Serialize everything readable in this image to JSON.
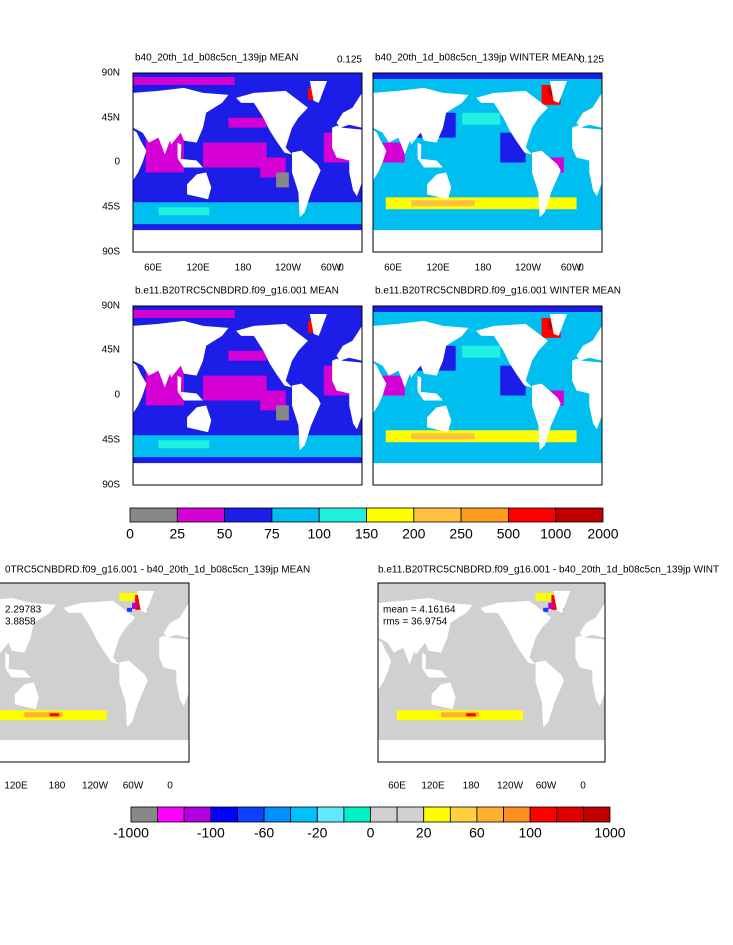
{
  "panels": [
    {
      "title": "b40_20th_1d_b08c5cn_139jp MEAN",
      "corner_label": "0.125",
      "y_labels": [
        "90N",
        "45N",
        "0",
        "45S",
        "90S"
      ],
      "x_labels": [
        "60E",
        "120E",
        "180",
        "120W",
        "60W",
        "0"
      ]
    },
    {
      "title": "b40_20th_1d_b08c5cn_139jp WINTER MEAN",
      "corner_label": "0.125",
      "x_labels": [
        "60E",
        "120E",
        "180",
        "120W",
        "60W",
        "0"
      ]
    },
    {
      "title": "b.e11.B20TRC5CNBDRD.f09_g16.001 MEAN",
      "y_labels": [
        "90N",
        "45N",
        "0",
        "45S",
        "90S"
      ]
    },
    {
      "title": "b.e11.B20TRC5CNBDRD.f09_g16.001 WINTER MEAN"
    },
    {
      "title": "0TRC5CNBDRD.f09_g16.001 - b40_20th_1d_b08c5cn_139jp MEAN",
      "stats": [
        "2.29783",
        "3.8858"
      ],
      "x_labels": [
        "120E",
        "180",
        "120W",
        "60W",
        "0"
      ]
    },
    {
      "title": "b.e11.B20TRC5CNBDRD.f09_g16.001 - b40_20th_1d_b08c5cn_139jp WINT",
      "stats": [
        "mean = 4.16164",
        "rms = 36.9754"
      ],
      "x_labels": [
        "60E",
        "120E",
        "180",
        "120W",
        "60W",
        "0"
      ]
    }
  ],
  "colorbars": [
    {
      "labels": [
        "0",
        "25",
        "50",
        "75",
        "100",
        "150",
        "200",
        "250",
        "500",
        "1000",
        "2000"
      ],
      "colors": [
        "#888888",
        "#d400d4",
        "#1d1de8",
        "#00bff0",
        "#20f0e0",
        "#ffff00",
        "#ffc040",
        "#ff9a20",
        "#ff0000",
        "#c00000"
      ]
    },
    {
      "labels": [
        "-1000",
        "-100",
        "-60",
        "-20",
        "0",
        "20",
        "60",
        "100",
        "1000"
      ],
      "colors": [
        "#888888",
        "#ff00ff",
        "#b000e0",
        "#0000ff",
        "#1040ff",
        "#0090ff",
        "#00c0ff",
        "#60e8ff",
        "#00f0c8",
        "#d0d0d0",
        "#d0d0d0",
        "#ffff00",
        "#ffd040",
        "#ffb030",
        "#ff9020",
        "#ff0000",
        "#e00000",
        "#c00000"
      ]
    }
  ]
}
